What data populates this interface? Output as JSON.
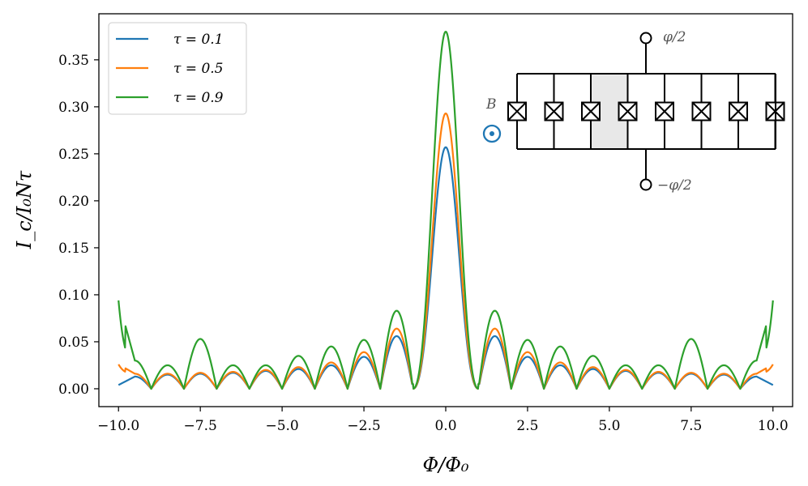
{
  "chart_data": {
    "type": "line",
    "xlabel": "Φ/Φ₀",
    "ylabel": "I_c/I₀Nτ",
    "xlim": [
      -10.6,
      10.6
    ],
    "ylim": [
      -0.019,
      0.399
    ],
    "xticks": [
      -10.0,
      -7.5,
      -5.0,
      -2.5,
      0.0,
      2.5,
      5.0,
      7.5,
      10.0
    ],
    "xtick_labels": [
      "−10.0",
      "−7.5",
      "−5.0",
      "−2.5",
      "0.0",
      "2.5",
      "5.0",
      "7.5",
      "10.0"
    ],
    "yticks": [
      0.0,
      0.05,
      0.1,
      0.15,
      0.2,
      0.25,
      0.3,
      0.35
    ],
    "ytick_labels": [
      "0.00",
      "0.05",
      "0.10",
      "0.15",
      "0.20",
      "0.25",
      "0.30",
      "0.35"
    ],
    "grid": false,
    "legend_position": "top-left",
    "series": [
      {
        "name": "τ = 0.1",
        "color": "#1f77b4",
        "peak": 0.257,
        "side_lobes": [
          0.056,
          0.034,
          0.025,
          0.021,
          0.019,
          0.017,
          0.016,
          0.015,
          0.014,
          0.013
        ],
        "end_value": 0.004
      },
      {
        "name": "τ = 0.5",
        "color": "#ff7f0e",
        "peak": 0.293,
        "side_lobes": [
          0.064,
          0.039,
          0.028,
          0.023,
          0.02,
          0.018,
          0.017,
          0.016,
          0.017,
          0.016
        ],
        "end_value": 0.026
      },
      {
        "name": "τ = 0.9",
        "color": "#2ca02c",
        "peak": 0.38,
        "side_lobes": [
          0.083,
          0.052,
          0.045,
          0.035,
          0.025,
          0.025,
          0.053,
          0.025,
          0.022,
          0.03
        ],
        "end_value": 0.094
      }
    ]
  },
  "legend": {
    "entries": [
      {
        "label": "τ = 0.1",
        "color": "#1f77b4"
      },
      {
        "label": "τ = 0.5",
        "color": "#ff7f0e"
      },
      {
        "label": "τ = 0.9",
        "color": "#2ca02c"
      }
    ]
  },
  "inset": {
    "top_terminal_label": "φ/2",
    "bottom_terminal_label": "−φ/2",
    "field_label": "B",
    "field_color": "#1f77b4",
    "junction_count": 8
  }
}
